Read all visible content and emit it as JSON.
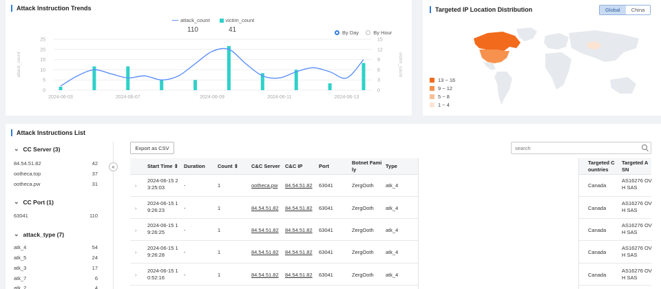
{
  "trends": {
    "title": "Attack Instruction Trends",
    "legend": {
      "attack_count": "attack_count",
      "victim_count": "victim_count"
    },
    "attack_total": "110",
    "victim_total": "41",
    "radio_day": "By Day",
    "radio_hour": "By Hour",
    "left_axis_label": "attack_count",
    "right_axis_label": "victim_count",
    "colors": {
      "line": "#5b8ff9",
      "bar": "#2fd1c9"
    }
  },
  "chart_data": {
    "type": "bar",
    "title": "Attack Instruction Trends",
    "x_labels": [
      "2024-06-03",
      "2024-06-07",
      "2024-06-09",
      "2024-06-11",
      "2024-06-13"
    ],
    "left_ticks": [
      "0",
      "5",
      "10",
      "15",
      "20",
      "25"
    ],
    "right_ticks": [
      "0",
      "3",
      "6",
      "9",
      "12",
      "15"
    ],
    "ylim_left": [
      0,
      25
    ],
    "ylim_right": [
      0,
      15
    ],
    "series": [
      {
        "name": "victim_count",
        "type": "bar",
        "axis": "right",
        "values": [
          1,
          0,
          7,
          0,
          7,
          0,
          3,
          0,
          3,
          0,
          13,
          0,
          5,
          0,
          6,
          0,
          2,
          0,
          8
        ]
      },
      {
        "name": "attack_count",
        "type": "line",
        "axis": "left",
        "values": [
          2,
          7,
          10,
          8,
          6,
          7,
          5,
          7,
          13,
          19,
          20,
          13,
          7,
          6,
          9,
          11,
          9,
          6,
          15
        ]
      }
    ],
    "x_start": "2024-06-03",
    "x_end": "2024-06-14"
  },
  "geo": {
    "title": "Targeted IP Location Distribution",
    "toggle": [
      "Global",
      "China"
    ],
    "legend": [
      "13 ~ 16",
      "9 ~ 12",
      "5 ~ 8",
      "1 ~ 4"
    ],
    "colors": [
      "#f26b1d",
      "#f6924e",
      "#f9bf98",
      "#fce4d3"
    ]
  },
  "list": {
    "title": "Attack Instructions List",
    "export_label": "Export as CSV",
    "search_placeholder": "search",
    "facets": {
      "cc_server": {
        "title": "CC Server (3)",
        "items": [
          [
            "84.54.51.82",
            "42"
          ],
          [
            "ootheca.top",
            "37"
          ],
          [
            "ootheca.pw",
            "31"
          ]
        ]
      },
      "cc_port": {
        "title": "CC Port (1)",
        "items": [
          [
            "63041",
            "110"
          ]
        ]
      },
      "attack_type": {
        "title": "attack_type (7)",
        "items": [
          [
            "atk_4",
            "54"
          ],
          [
            "atk_5",
            "24"
          ],
          [
            "atk_3",
            "17"
          ],
          [
            "atk_7",
            "6"
          ],
          [
            "atk_2",
            "4"
          ]
        ]
      }
    },
    "columns": {
      "start_time": "Start Time",
      "duration": "Duration",
      "count": "Count",
      "cc_server": "C&C Server",
      "cc_ip": "C&C IP",
      "port": "Port",
      "botnet_a": "Botnet Fami",
      "botnet_b": "ly",
      "type": "Type",
      "countries_a": "Targeted C",
      "countries_b": "ountries",
      "asn_a": "Targeted A",
      "asn_b": "SN"
    },
    "rows": [
      {
        "time_a": "2024-06-15 2",
        "time_b": "3:25:03",
        "duration": "-",
        "count": "1",
        "server": "ootheca.pw",
        "ip": "84.54.51.82",
        "port": "63041",
        "family": "ZergOoth",
        "type": "atk_4",
        "country": "Canada",
        "asn_a": "AS16276 OV",
        "asn_b": "H SAS"
      },
      {
        "time_a": "2024-06-15 1",
        "time_b": "9:26:23",
        "duration": "-",
        "count": "1",
        "server": "84.54.51.82",
        "ip": "84.54.51.82",
        "port": "63041",
        "family": "ZergOoth",
        "type": "atk_4",
        "country": "Canada",
        "asn_a": "AS16276 OV",
        "asn_b": "H SAS"
      },
      {
        "time_a": "2024-06-15 1",
        "time_b": "9:26:25",
        "duration": "-",
        "count": "1",
        "server": "84.54.51.82",
        "ip": "84.54.51.82",
        "port": "63041",
        "family": "ZergOoth",
        "type": "atk_4",
        "country": "Canada",
        "asn_a": "AS16276 OV",
        "asn_b": "H SAS"
      },
      {
        "time_a": "2024-06-15 1",
        "time_b": "9:26:28",
        "duration": "-",
        "count": "1",
        "server": "84.54.51.82",
        "ip": "84.54.51.82",
        "port": "63041",
        "family": "ZergOoth",
        "type": "atk_4",
        "country": "Canada",
        "asn_a": "AS16276 OV",
        "asn_b": "H SAS"
      },
      {
        "time_a": "2024-06-15 1",
        "time_b": "0:52:16",
        "duration": "-",
        "count": "1",
        "server": "84.54.51.82",
        "ip": "84.54.51.82",
        "port": "63041",
        "family": "ZergOoth",
        "type": "atk_4",
        "country": "Canada",
        "asn_a": "AS16276 OV",
        "asn_b": "H SAS"
      }
    ]
  }
}
